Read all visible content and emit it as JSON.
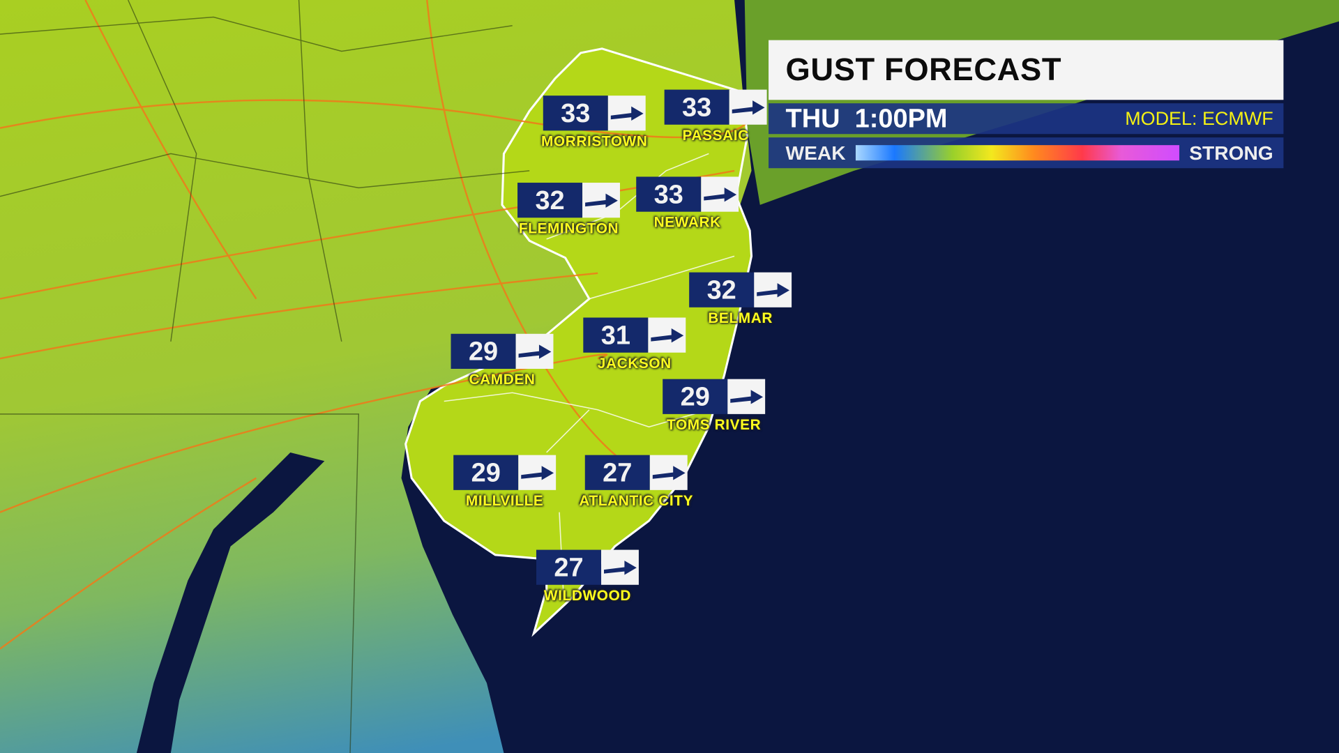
{
  "header": {
    "title": "GUST FORECAST",
    "time": "THU  1:00PM",
    "model": "MODEL: ECMWF"
  },
  "legend": {
    "low_label": "WEAK",
    "high_label": "STRONG",
    "colors": [
      "#aad8ff",
      "#1a78ff",
      "#9ad02a",
      "#f3e81e",
      "#ff8a1e",
      "#ff3a4a",
      "#e85ad8",
      "#d04cff"
    ]
  },
  "colors": {
    "ocean": "#0b1640",
    "land": "#a8cc1e",
    "box": "#14296b",
    "label": "#ffff1e",
    "roads": "#f07a1a"
  },
  "direction_icon": "arrow-right-icon",
  "units_shown": "",
  "markers": [
    {
      "city": "MORRISTOWN",
      "gust": "33"
    },
    {
      "city": "PASSAIC",
      "gust": "33"
    },
    {
      "city": "FLEMINGTON",
      "gust": "32"
    },
    {
      "city": "NEWARK",
      "gust": "33"
    },
    {
      "city": "BELMAR",
      "gust": "32"
    },
    {
      "city": "JACKSON",
      "gust": "31"
    },
    {
      "city": "CAMDEN",
      "gust": "29"
    },
    {
      "city": "TOMS RIVER",
      "gust": "29"
    },
    {
      "city": "MILLVILLE",
      "gust": "29"
    },
    {
      "city": "ATLANTIC CITY",
      "gust": "27"
    },
    {
      "city": "WILDWOOD",
      "gust": "27"
    }
  ]
}
